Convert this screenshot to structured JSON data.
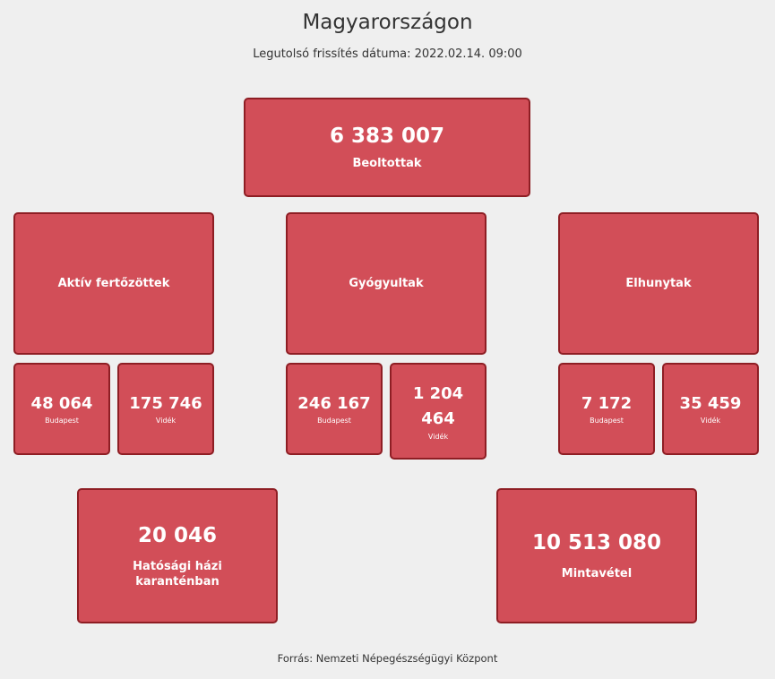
{
  "header": {
    "title": "Magyarországon",
    "last_update": "Legutolsó frissítés dátuma: 2022.02.14. 09:00"
  },
  "vaccinated": {
    "value": "6 383 007",
    "label": "Beoltottak"
  },
  "categories": [
    {
      "label": "Aktív fertőzöttek",
      "budapest": {
        "value": "48 064",
        "label": "Budapest"
      },
      "videk": {
        "value": "175 746",
        "label": "Vidék"
      }
    },
    {
      "label": "Gyógyultak",
      "budapest": {
        "value": "246 167",
        "label": "Budapest"
      },
      "videk": {
        "value": "1 204 464",
        "label": "Vidék"
      }
    },
    {
      "label": "Elhunytak",
      "budapest": {
        "value": "7 172",
        "label": "Budapest"
      },
      "videk": {
        "value": "35 459",
        "label": "Vidék"
      }
    }
  ],
  "quarantine": {
    "value": "20 046",
    "label": "Hatósági házi karanténban"
  },
  "sampling": {
    "value": "10 513 080",
    "label": "Mintavétel"
  },
  "footer": {
    "source": "Forrás: Nemzeti Népegészségügyi Központ"
  },
  "colors": {
    "box_fill": "#d24e58",
    "box_border": "#8e1e24",
    "background": "#efefef"
  }
}
